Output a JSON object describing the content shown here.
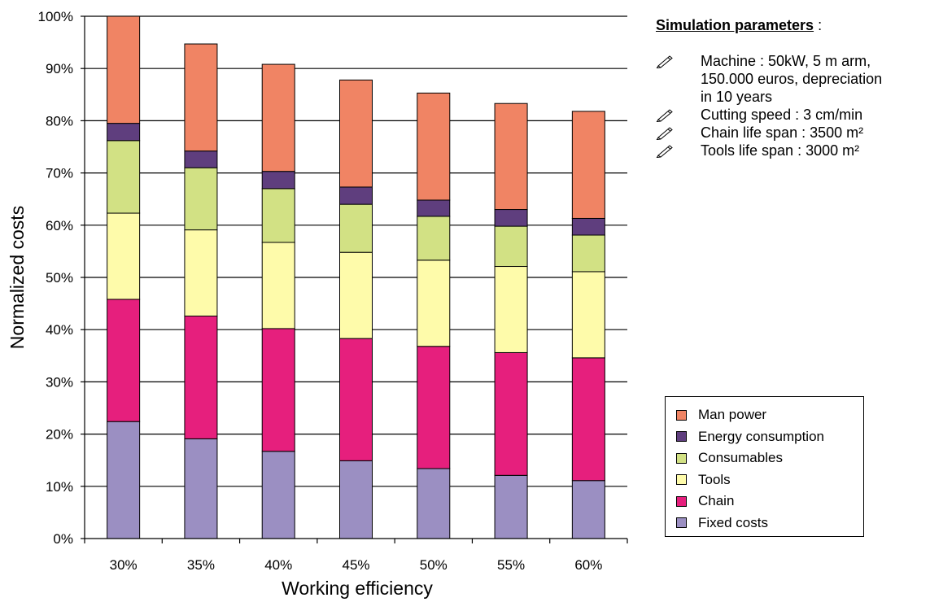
{
  "chart_data": {
    "type": "bar",
    "stacked": true,
    "xlabel": "Working efficiency",
    "ylabel": "Normalized costs",
    "ylim": [
      0,
      100
    ],
    "y_ticks": [
      "0%",
      "10%",
      "20%",
      "30%",
      "40%",
      "50%",
      "60%",
      "70%",
      "80%",
      "90%",
      "100%"
    ],
    "categories": [
      "30%",
      "35%",
      "40%",
      "45%",
      "50%",
      "55%",
      "60%"
    ],
    "grid": "horizontal",
    "legend_position": "bottom-right",
    "series": [
      {
        "name": "Fixed costs",
        "color": "#9b8fc2",
        "values": [
          22.4,
          19.1,
          16.7,
          14.9,
          13.4,
          12.1,
          11.1
        ]
      },
      {
        "name": "Chain",
        "color": "#e61f7d",
        "values": [
          23.4,
          23.5,
          23.5,
          23.4,
          23.4,
          23.5,
          23.5
        ]
      },
      {
        "name": "Tools",
        "color": "#fefbaa",
        "values": [
          16.5,
          16.5,
          16.5,
          16.5,
          16.5,
          16.5,
          16.5
        ]
      },
      {
        "name": "Consumables",
        "color": "#d2e184",
        "values": [
          13.9,
          11.9,
          10.3,
          9.2,
          8.4,
          7.7,
          7.0
        ]
      },
      {
        "name": "Energy consumption",
        "color": "#5f3e7e",
        "values": [
          3.3,
          3.2,
          3.3,
          3.3,
          3.1,
          3.2,
          3.2
        ]
      },
      {
        "name": "Man power",
        "color": "#f08464",
        "values": [
          20.5,
          20.5,
          20.5,
          20.5,
          20.5,
          20.3,
          20.5
        ]
      }
    ]
  },
  "legend": {
    "items": [
      {
        "label": "Man power",
        "color": "#f08464"
      },
      {
        "label": "Energy consumption",
        "color": "#5f3e7e"
      },
      {
        "label": "Consumables",
        "color": "#d2e184"
      },
      {
        "label": "Tools",
        "color": "#fefbaa"
      },
      {
        "label": "Chain",
        "color": "#e61f7d"
      },
      {
        "label": "Fixed costs",
        "color": "#9b8fc2"
      }
    ]
  },
  "params": {
    "title": "Simulation parameters",
    "title_suffix": " :",
    "icon": "pencil-icon",
    "lines": [
      [
        "Machine : 50kW,  5 m arm,",
        "150.000 euros, depreciation",
        "in 10 years"
      ],
      [
        "Cutting speed : 3 cm/min"
      ],
      [
        "Chain life span : 3500 m²"
      ],
      [
        "Tools life span : 3000 m²"
      ]
    ]
  }
}
